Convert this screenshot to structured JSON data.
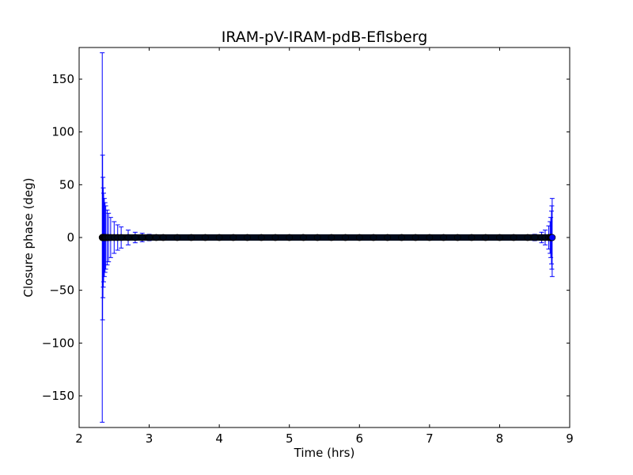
{
  "chart_data": {
    "type": "scatter",
    "title": "IRAM-pV-IRAM-pdB-Eflsberg",
    "xlabel": "Time (hrs)",
    "ylabel": "Closure phase (deg)",
    "xlim": [
      2,
      9
    ],
    "ylim": [
      -180,
      180
    ],
    "xticks": [
      2,
      3,
      4,
      5,
      6,
      7,
      8,
      9
    ],
    "xtick_labels": [
      "2",
      "3",
      "4",
      "5",
      "6",
      "7",
      "8",
      "9"
    ],
    "yticks": [
      -150,
      -100,
      -50,
      0,
      50,
      100,
      150
    ],
    "ytick_labels": [
      "−150",
      "−100",
      "−50",
      "0",
      "50",
      "100",
      "150"
    ],
    "grid": false,
    "colors": {
      "errorbar": "#0000ff",
      "marker": "#000000"
    },
    "series": [
      {
        "x": [
          2.33,
          2.335,
          2.34,
          2.345,
          2.35,
          2.36,
          2.37,
          2.38,
          2.4,
          2.42,
          2.45,
          2.5,
          2.55,
          2.6,
          2.7,
          2.8,
          2.9,
          3.0,
          3.1,
          3.2,
          3.4,
          3.6,
          3.8,
          4.0,
          4.2,
          4.4,
          4.6,
          4.8,
          5.0,
          5.2,
          5.4,
          5.6,
          5.8,
          6.0,
          6.2,
          6.4,
          6.6,
          6.8,
          7.0,
          7.2,
          7.4,
          7.6,
          7.8,
          8.0,
          8.2,
          8.4,
          8.5,
          8.6,
          8.65,
          8.7,
          8.72,
          8.73,
          8.74,
          8.745,
          8.75
        ],
        "y": [
          0,
          0,
          0,
          0,
          0,
          0,
          0,
          0,
          0,
          0,
          0,
          0,
          0,
          0,
          0,
          0,
          0,
          0,
          0,
          0,
          0,
          0,
          0,
          0,
          0,
          0,
          0,
          0,
          0,
          0,
          0,
          0,
          0,
          0,
          0,
          0,
          0,
          0,
          0,
          0,
          0,
          0,
          0,
          0,
          0,
          0,
          0,
          0,
          0,
          0,
          0,
          0,
          0,
          0,
          0
        ],
        "err": [
          175,
          78,
          57,
          47,
          42,
          37,
          33,
          30,
          26,
          23,
          19,
          15,
          12,
          10,
          7,
          5,
          4,
          3,
          2.5,
          2,
          1.5,
          1.2,
          1,
          1,
          1,
          1,
          1,
          1,
          1,
          1,
          1,
          1,
          1,
          1,
          1,
          1,
          1,
          1,
          1,
          1,
          1,
          1,
          1,
          1.2,
          1.5,
          2,
          3,
          5,
          7,
          11,
          15,
          19,
          25,
          30,
          37
        ]
      }
    ]
  }
}
